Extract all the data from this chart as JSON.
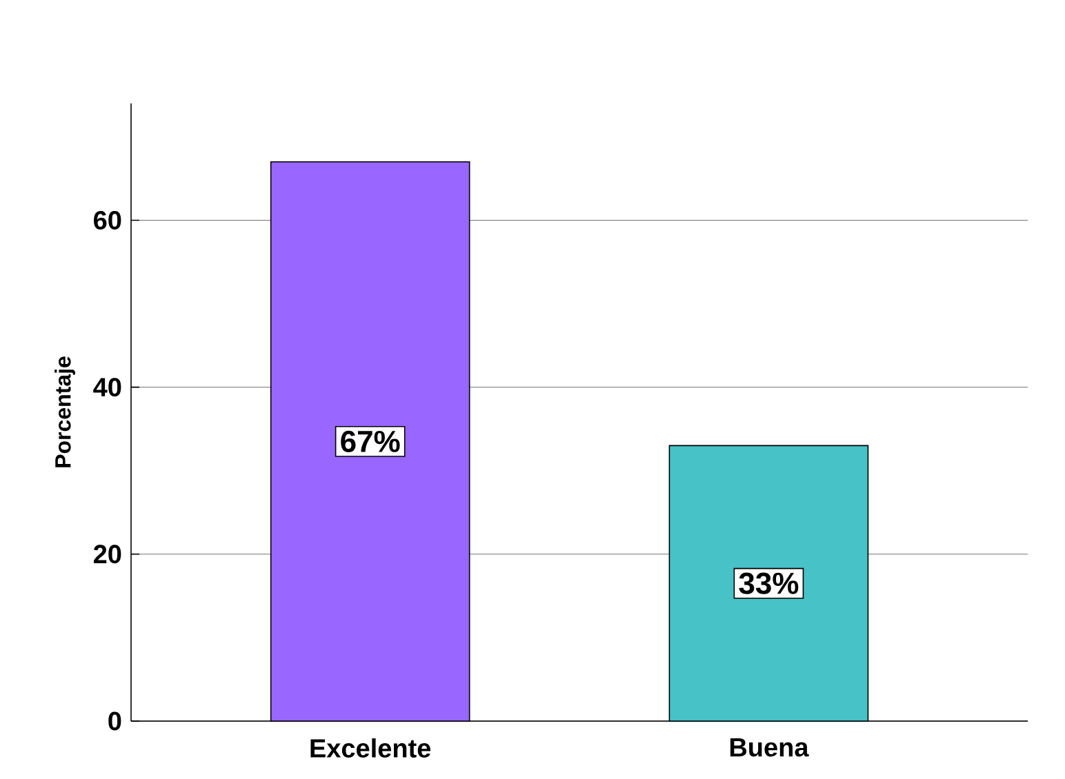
{
  "chart_data": {
    "type": "bar",
    "ylabel": "Porcentaje",
    "categories": [
      "Excelente",
      "Buena"
    ],
    "values": [
      67,
      33
    ],
    "colors": [
      "#9966ff",
      "#47c2c7"
    ],
    "value_labels": [
      "67%",
      "33%"
    ],
    "ylim": [
      0,
      74
    ],
    "yticks": [
      0,
      20,
      40,
      60
    ],
    "grid": "y"
  }
}
